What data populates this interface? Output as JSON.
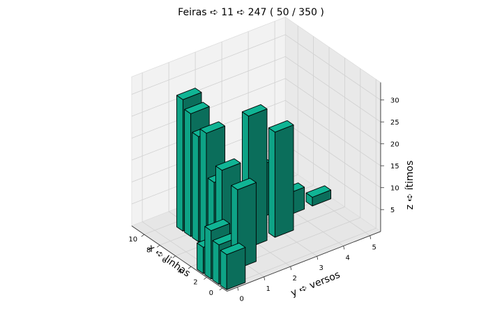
{
  "chart_data": {
    "type": "bar3d",
    "title": "Feiras ➪ 11 ➪ 247 ( 50 / 350 )",
    "xlabel": "x ➪ linhas",
    "ylabel": "y ➪ versos",
    "zlabel": "z ➪ ítimos",
    "x_ticks": [
      "0",
      "2",
      "4",
      "6",
      "8",
      "10"
    ],
    "y_ticks": [
      "0",
      "1",
      "2",
      "3",
      "4",
      "5"
    ],
    "z_ticks": [
      "5",
      "10",
      "15",
      "20",
      "25",
      "30"
    ],
    "xlim": [
      0,
      11
    ],
    "ylim": [
      0,
      5
    ],
    "zlim": [
      0,
      32
    ],
    "bar_color": "#10b494",
    "edge_color": "#000000",
    "bars": [
      {
        "x": 0,
        "y": 0,
        "z": 8
      },
      {
        "x": 1,
        "y": 0,
        "z": 9
      },
      {
        "x": 2,
        "y": 0,
        "z": 11
      },
      {
        "x": 3,
        "y": 0,
        "z": 6
      },
      {
        "x": 2,
        "y": 1,
        "z": 18
      },
      {
        "x": 4,
        "y": 1,
        "z": 20
      },
      {
        "x": 5,
        "y": 1,
        "z": 16
      },
      {
        "x": 6,
        "y": 1,
        "z": 26
      },
      {
        "x": 7,
        "y": 1,
        "z": 24
      },
      {
        "x": 8,
        "y": 1,
        "z": 28
      },
      {
        "x": 9,
        "y": 1,
        "z": 30
      },
      {
        "x": 4,
        "y": 2,
        "z": 30
      },
      {
        "x": 5,
        "y": 2,
        "z": 7
      },
      {
        "x": 6,
        "y": 2,
        "z": 6
      },
      {
        "x": 7,
        "y": 2,
        "z": 4
      },
      {
        "x": 8,
        "y": 2,
        "z": 4
      },
      {
        "x": 9,
        "y": 2,
        "z": 2
      },
      {
        "x": 10,
        "y": 2,
        "z": 1
      },
      {
        "x": 4,
        "y": 3,
        "z": 24
      },
      {
        "x": 7,
        "y": 3,
        "z": 12
      },
      {
        "x": 8,
        "y": 3,
        "z": 4
      },
      {
        "x": 6,
        "y": 4,
        "z": 5
      },
      {
        "x": 7,
        "y": 4,
        "z": 2
      },
      {
        "x": 6,
        "y": 5,
        "z": 2
      }
    ]
  }
}
